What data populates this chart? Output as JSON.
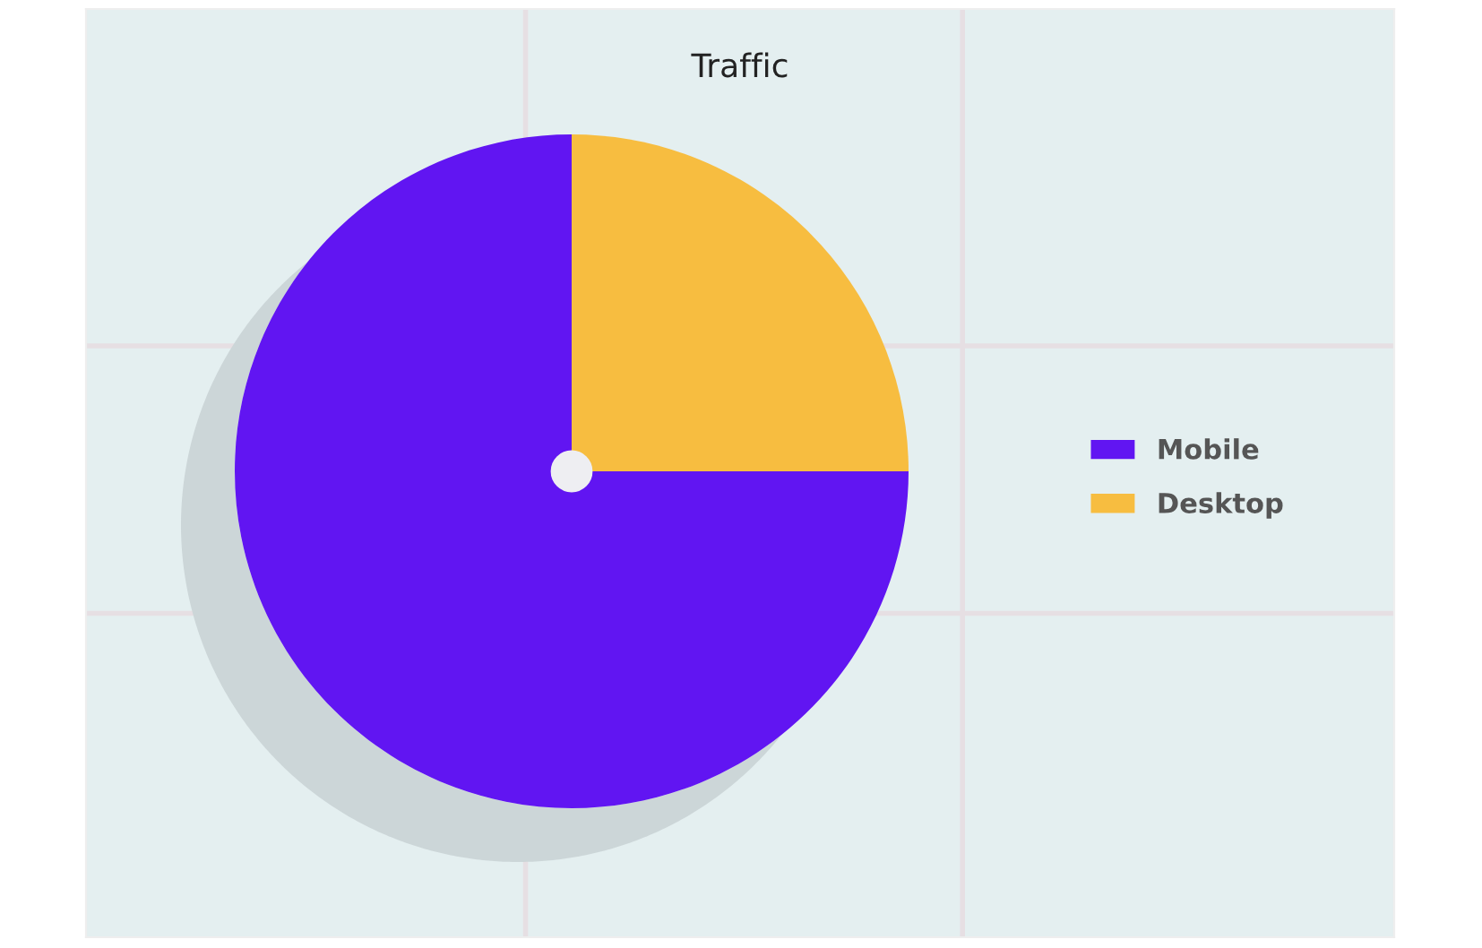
{
  "chart_data": {
    "type": "pie",
    "title": "Traffic",
    "categories": [
      "Mobile",
      "Desktop"
    ],
    "values": [
      75,
      25
    ],
    "colors": [
      "#6115f2",
      "#f7bd40"
    ],
    "legend": "right",
    "grid": true
  }
}
